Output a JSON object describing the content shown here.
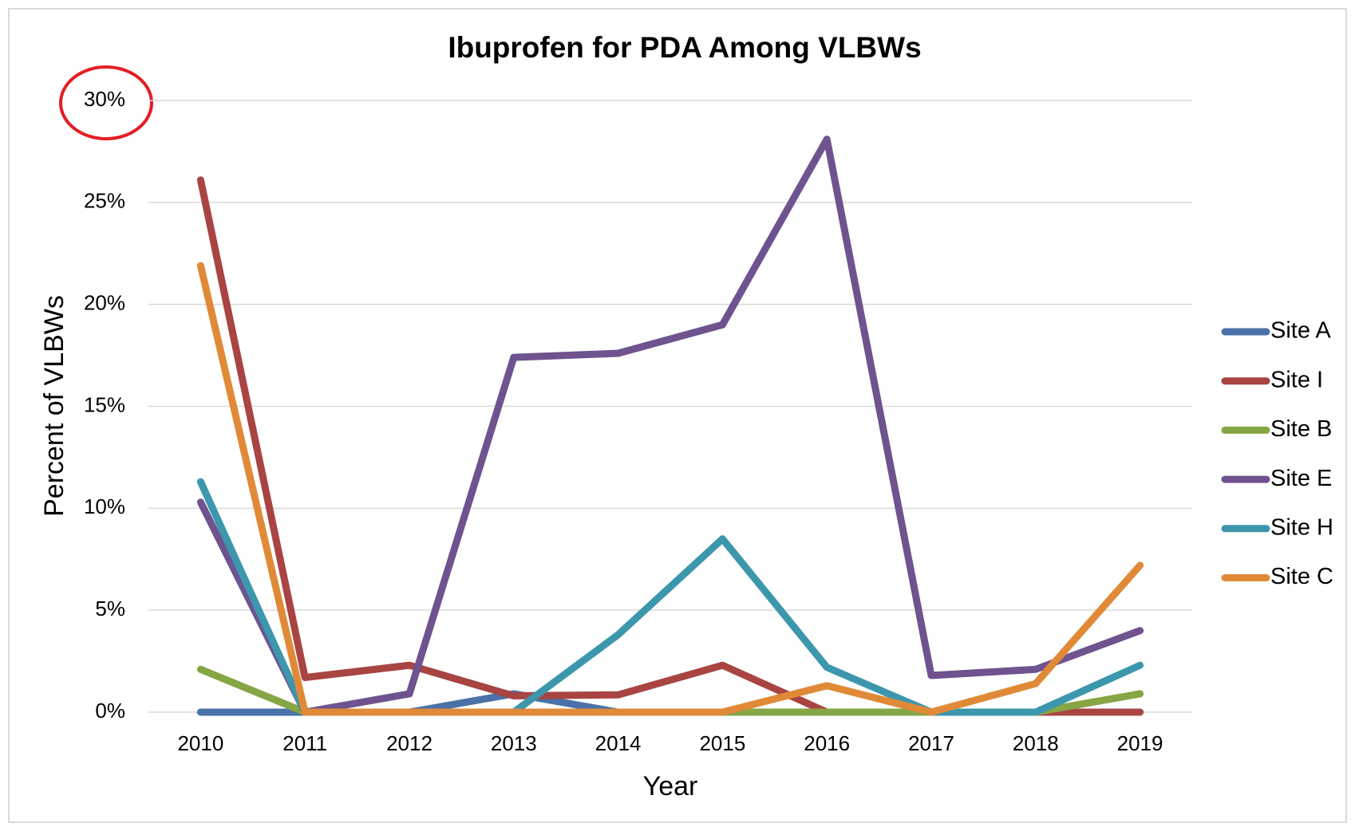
{
  "chart_data": {
    "type": "line",
    "title": "Ibuprofen for PDA Among VLBWs",
    "x_label": "Year",
    "y_label": "Percent of VLBWs",
    "categories": [
      "2010",
      "2011",
      "2012",
      "2013",
      "2014",
      "2015",
      "2016",
      "2017",
      "2018",
      "2019"
    ],
    "series": [
      {
        "name": "Site A",
        "color": "#4a72a8",
        "values": [
          0,
          0,
          0,
          0.9,
          0,
          0,
          0,
          0,
          0,
          0
        ]
      },
      {
        "name": "Site I",
        "color": "#a84442",
        "values": [
          26.1,
          1.7,
          2.3,
          0.8,
          0.85,
          2.3,
          0,
          0,
          0,
          0
        ]
      },
      {
        "name": "Site B",
        "color": "#86a544",
        "values": [
          2.1,
          0,
          0,
          0,
          0,
          0,
          0,
          0,
          0,
          0.9
        ]
      },
      {
        "name": "Site E",
        "color": "#6e538f",
        "values": [
          10.3,
          0,
          0.9,
          17.4,
          17.6,
          19.0,
          28.1,
          1.8,
          2.1,
          4.0
        ]
      },
      {
        "name": "Site H",
        "color": "#3c97ad",
        "values": [
          11.3,
          0,
          0,
          0,
          3.8,
          8.5,
          2.2,
          0,
          0,
          2.3
        ]
      },
      {
        "name": "Site C",
        "color": "#e08a38",
        "values": [
          21.9,
          0,
          0,
          0,
          0,
          0,
          1.3,
          0,
          1.4,
          7.2
        ]
      }
    ],
    "ylim": [
      0,
      30
    ],
    "yticks": [
      {
        "value": 0,
        "label": "0%"
      },
      {
        "value": 5,
        "label": "5%"
      },
      {
        "value": 10,
        "label": "10%"
      },
      {
        "value": 15,
        "label": "15%"
      },
      {
        "value": 20,
        "label": "20%"
      },
      {
        "value": 25,
        "label": "25%"
      },
      {
        "value": 30,
        "label": "30%"
      }
    ],
    "grid": true,
    "legend": "right"
  }
}
